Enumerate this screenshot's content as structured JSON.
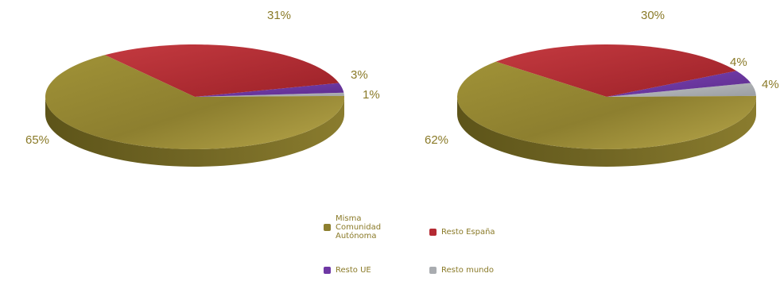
{
  "colors": {
    "misma": "#8d7f2f",
    "resto_espana": "#b42a33",
    "resto_ue": "#6e38a4",
    "resto_mundo": "#a9acb0"
  },
  "legend": [
    {
      "label": "Misma\nComunidad\nAutónoma",
      "color_key": "misma"
    },
    {
      "label": "Resto España",
      "color_key": "resto_espana"
    },
    {
      "label": "Resto UE",
      "color_key": "resto_ue"
    },
    {
      "label": "Resto mundo",
      "color_key": "resto_mundo"
    }
  ],
  "chart_data": [
    {
      "type": "pie",
      "title": "",
      "slices": [
        {
          "name": "Misma Comunidad Autónoma",
          "value": 65,
          "label": "65%"
        },
        {
          "name": "Resto España",
          "value": 31,
          "label": "31%"
        },
        {
          "name": "Resto UE",
          "value": 3,
          "label": "3%"
        },
        {
          "name": "Resto mundo",
          "value": 1,
          "label": "1%"
        }
      ]
    },
    {
      "type": "pie",
      "title": "",
      "slices": [
        {
          "name": "Misma Comunidad Autónoma",
          "value": 62,
          "label": "62%"
        },
        {
          "name": "Resto España",
          "value": 30,
          "label": "30%"
        },
        {
          "name": "Resto UE",
          "value": 4,
          "label": "4%"
        },
        {
          "name": "Resto mundo",
          "value": 4,
          "label": "4%"
        }
      ]
    }
  ]
}
